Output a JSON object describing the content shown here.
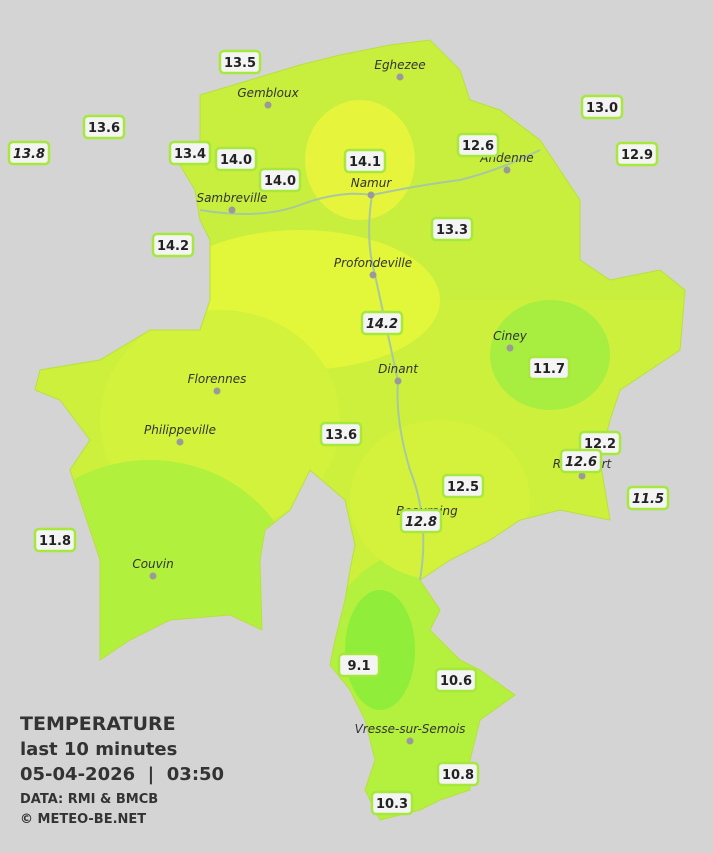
{
  "legend": {
    "title": "TEMPERATURE",
    "subtitle": "last 10 minutes",
    "datetime": "05-04-2026  |  03:50",
    "source": "DATA: RMI & BMCB",
    "copyright": "© METEO-BE.NET"
  },
  "cities": [
    "Eghezee",
    "Gembloux",
    "Andenne",
    "Namur",
    "Sambreville",
    "Profondeville",
    "Ciney",
    "Florennes",
    "Dinant",
    "Philippeville",
    "Rochefort",
    "Beauraing",
    "Couvin",
    "Vresse-sur-Semois"
  ],
  "stations": [
    {
      "value": "13.5",
      "italic": false
    },
    {
      "value": "13.6",
      "italic": false
    },
    {
      "value": "13.8",
      "italic": true
    },
    {
      "value": "13.4",
      "italic": false
    },
    {
      "value": "14.0",
      "italic": false
    },
    {
      "value": "14.0",
      "italic": false
    },
    {
      "value": "14.1",
      "italic": false
    },
    {
      "value": "12.6",
      "italic": false
    },
    {
      "value": "13.0",
      "italic": false
    },
    {
      "value": "12.9",
      "italic": false
    },
    {
      "value": "13.3",
      "italic": false
    },
    {
      "value": "14.2",
      "italic": false
    },
    {
      "value": "14.2",
      "italic": true
    },
    {
      "value": "11.7",
      "italic": false
    },
    {
      "value": "13.6",
      "italic": false
    },
    {
      "value": "12.2",
      "italic": false
    },
    {
      "value": "12.6",
      "italic": true
    },
    {
      "value": "12.5",
      "italic": false
    },
    {
      "value": "12.8",
      "italic": true
    },
    {
      "value": "11.5",
      "italic": true
    },
    {
      "value": "11.8",
      "italic": false
    },
    {
      "value": "9.1",
      "italic": false
    },
    {
      "value": "10.6",
      "italic": false
    },
    {
      "value": "10.8",
      "italic": false
    },
    {
      "value": "10.3",
      "italic": false
    }
  ]
}
